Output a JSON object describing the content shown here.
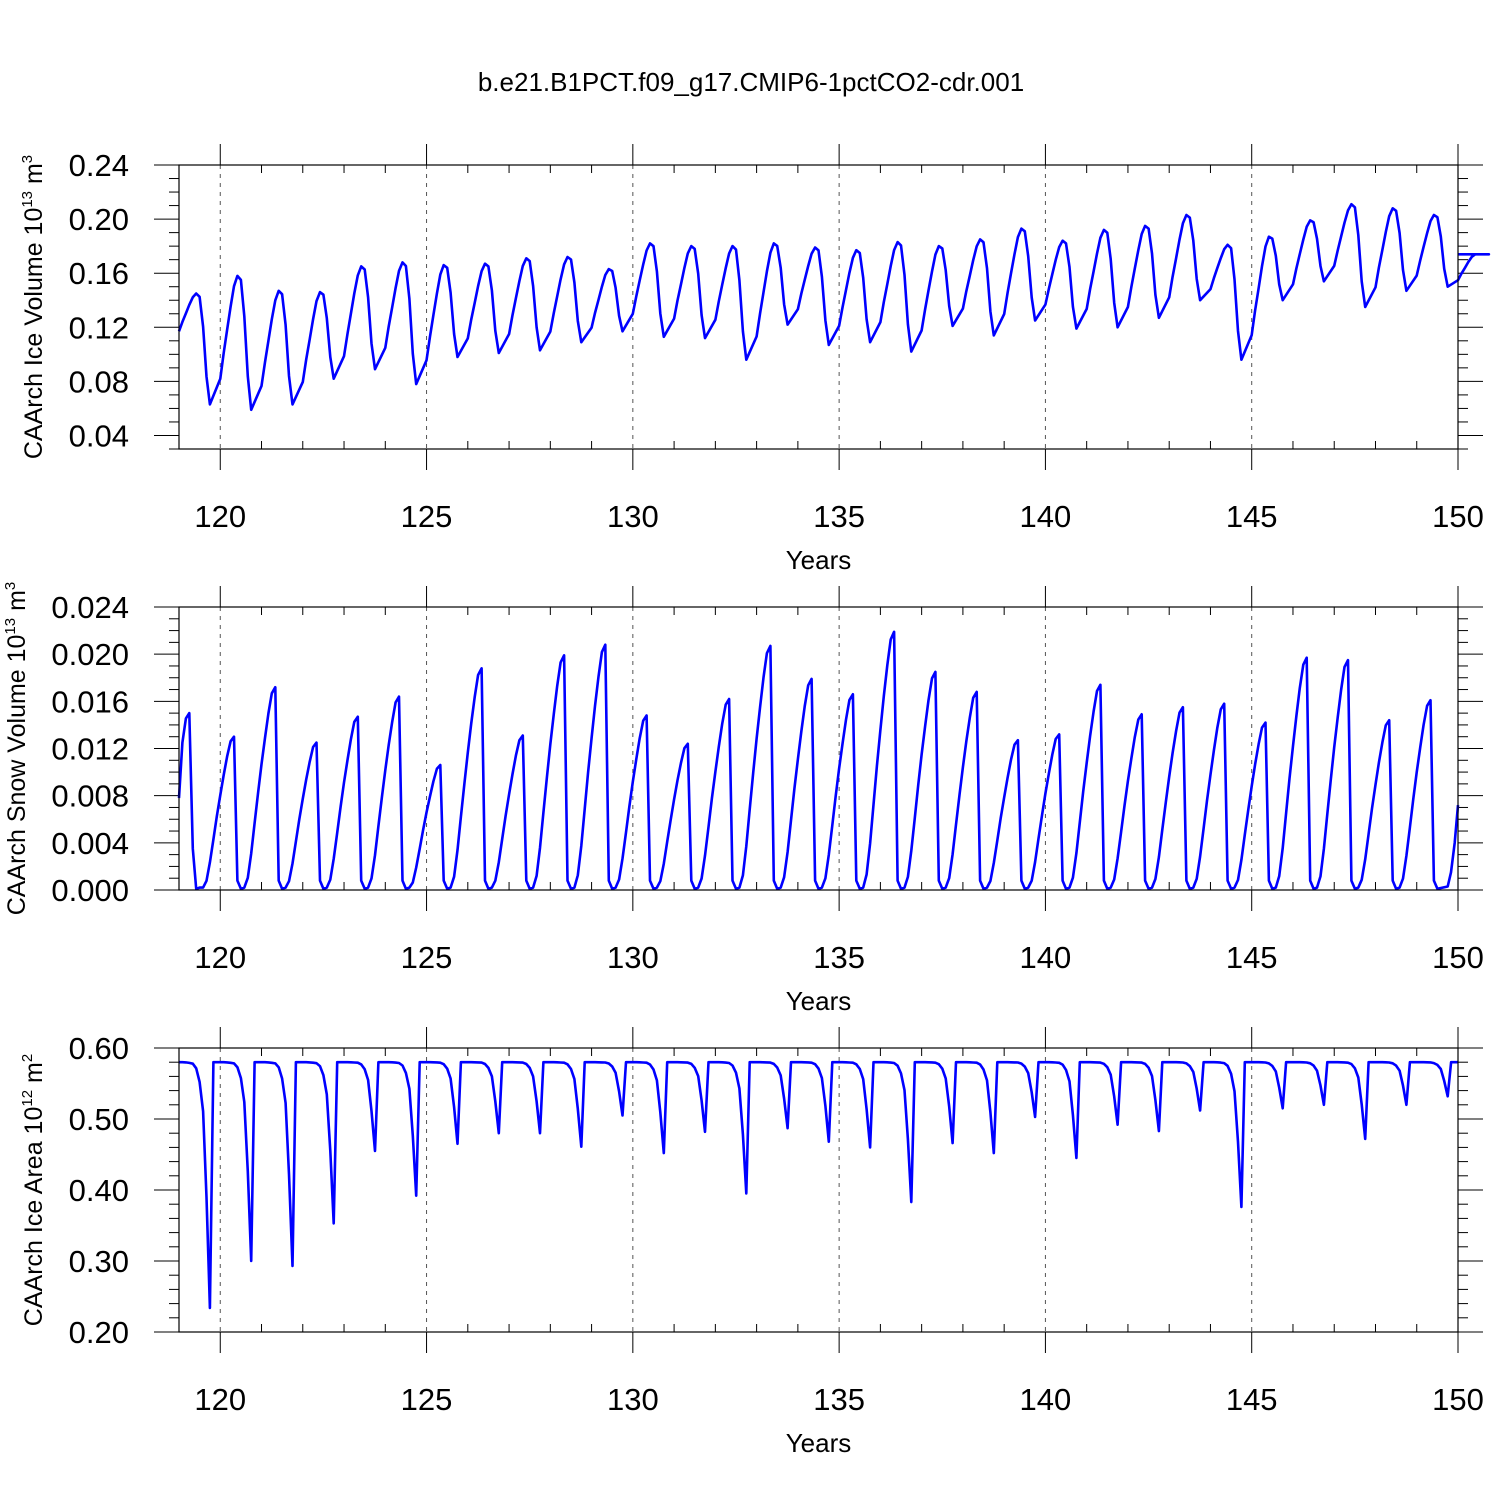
{
  "title": "b.e21.B1PCT.f09_g17.CMIP6-1pctCO2-cdr.001",
  "colors": {
    "line": "#0000ff",
    "axes": "#000000",
    "grid": "#555555",
    "background": "#ffffff"
  },
  "chart_data": [
    {
      "type": "line",
      "ylabel": "CAArch Ice Volume 10",
      "ylabel_exp": "13",
      "ylabel_unit": " m",
      "ylabel_unit_exp": "3",
      "xlabel": "Years",
      "xlim": [
        119,
        150
      ],
      "ylim": [
        0.03,
        0.24
      ],
      "yticks": [
        0.04,
        0.08,
        0.12,
        0.16,
        0.2,
        0.24
      ],
      "ytick_labels": [
        "0.04",
        "0.08",
        "0.12",
        "0.16",
        "0.20",
        "0.24"
      ],
      "ytick_minor_step": 0.01,
      "xticks": [
        120,
        125,
        130,
        135,
        140,
        145,
        150
      ],
      "xtick_labels": [
        "120",
        "125",
        "130",
        "135",
        "140",
        "145",
        "150"
      ],
      "grid": "vertical-dashed",
      "series": [
        {
          "peaks": [
            0.145,
            0.158,
            0.147,
            0.146,
            0.165,
            0.168,
            0.166,
            0.167,
            0.171,
            0.172,
            0.163,
            0.182,
            0.18,
            0.18,
            0.182,
            0.179,
            0.177,
            0.183,
            0.18,
            0.185,
            0.193,
            0.184,
            0.192,
            0.195,
            0.203,
            0.181,
            0.187,
            0.199,
            0.211,
            0.208,
            0.203,
            0.174
          ],
          "troughs": [
            0.063,
            0.059,
            0.063,
            0.082,
            0.089,
            0.078,
            0.098,
            0.101,
            0.103,
            0.109,
            0.117,
            0.113,
            0.112,
            0.096,
            0.122,
            0.107,
            0.109,
            0.102,
            0.121,
            0.114,
            0.125,
            0.119,
            0.12,
            0.127,
            0.14,
            0.096,
            0.14,
            0.154,
            0.135,
            0.147,
            0.15
          ]
        }
      ]
    },
    {
      "type": "line",
      "ylabel": "CAArch Snow Volume 10",
      "ylabel_exp": "13",
      "ylabel_unit": " m",
      "ylabel_unit_exp": "3",
      "xlabel": "Years",
      "xlim": [
        119,
        150
      ],
      "ylim": [
        0.0,
        0.024
      ],
      "yticks": [
        0.0,
        0.004,
        0.008,
        0.012,
        0.016,
        0.02,
        0.024
      ],
      "ytick_labels": [
        "0.000",
        "0.004",
        "0.008",
        "0.012",
        "0.016",
        "0.020",
        "0.024"
      ],
      "ytick_minor_step": 0.001,
      "xticks": [
        120,
        125,
        130,
        135,
        140,
        145,
        150
      ],
      "xtick_labels": [
        "120",
        "125",
        "130",
        "135",
        "140",
        "145",
        "150"
      ],
      "grid": "vertical-dashed",
      "series": [
        {
          "start": 0.0078,
          "peaks": [
            0.015,
            0.013,
            0.0172,
            0.0125,
            0.0147,
            0.0164,
            0.0106,
            0.0188,
            0.0131,
            0.0199,
            0.0208,
            0.0148,
            0.0124,
            0.0162,
            0.0207,
            0.0179,
            0.0166,
            0.0219,
            0.0185,
            0.0168,
            0.0127,
            0.0132,
            0.0174,
            0.0149,
            0.0155,
            0.0158,
            0.0142,
            0.0197,
            0.0195,
            0.0144,
            0.0161
          ],
          "end": 0.0072
        }
      ]
    },
    {
      "type": "line",
      "ylabel": "CAArch Ice Area 10",
      "ylabel_exp": "12",
      "ylabel_unit": " m",
      "ylabel_unit_exp": "2",
      "xlabel": "Years",
      "xlim": [
        119,
        150
      ],
      "ylim": [
        0.2,
        0.6
      ],
      "yticks": [
        0.2,
        0.3,
        0.4,
        0.5,
        0.6
      ],
      "ytick_labels": [
        "0.20",
        "0.30",
        "0.40",
        "0.50",
        "0.60"
      ],
      "ytick_minor_step": 0.02,
      "xticks": [
        120,
        125,
        130,
        135,
        140,
        145,
        150
      ],
      "xtick_labels": [
        "120",
        "125",
        "130",
        "135",
        "140",
        "145",
        "150"
      ],
      "grid": "vertical-dashed",
      "series": [
        {
          "max": 0.58,
          "minima": [
            0.234,
            0.3,
            0.293,
            0.353,
            0.455,
            0.392,
            0.465,
            0.48,
            0.48,
            0.461,
            0.505,
            0.452,
            0.482,
            0.395,
            0.487,
            0.468,
            0.46,
            0.383,
            0.466,
            0.452,
            0.503,
            0.445,
            0.492,
            0.483,
            0.512,
            0.376,
            0.515,
            0.52,
            0.472,
            0.52,
            0.532
          ]
        }
      ]
    }
  ]
}
